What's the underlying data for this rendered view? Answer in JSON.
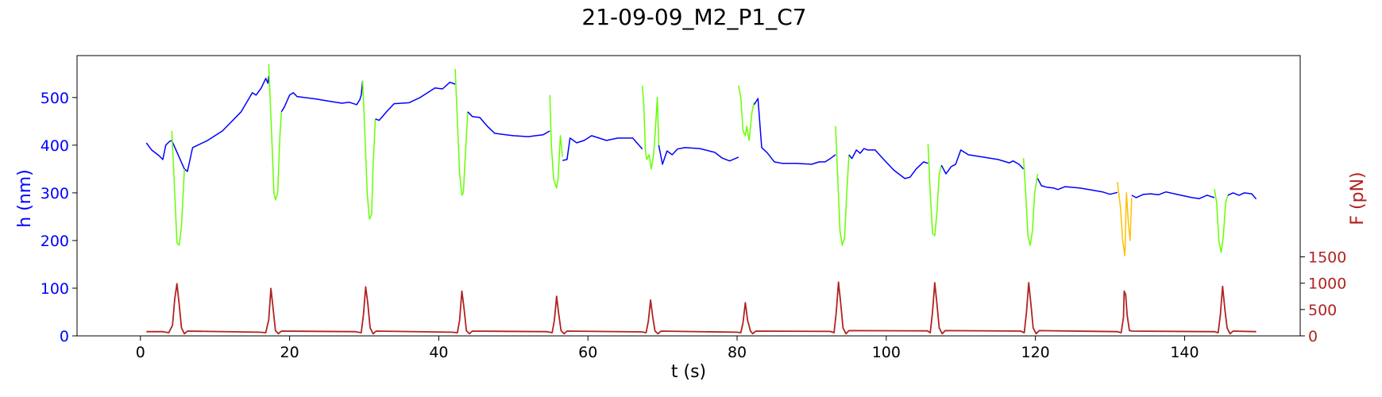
{
  "chart_data": {
    "type": "line",
    "title": "21-09-09_M2_P1_C7",
    "xlabel": "t (s)",
    "ylabel_left": "h (nm)",
    "ylabel_right": "F (pN)",
    "xlim": [
      -8.5,
      155.5
    ],
    "ylim_left": [
      0,
      588
    ],
    "ylim_right": [
      0,
      5320
    ],
    "x_ticks": [
      0,
      20,
      40,
      60,
      80,
      100,
      120,
      140
    ],
    "y_ticks_left": [
      0,
      100,
      200,
      300,
      400,
      500
    ],
    "y_ticks_right": [
      0,
      500,
      1000,
      1500
    ],
    "grid": false,
    "colors": {
      "height_baseline": "#0000ff",
      "height_pulse": "#66ff00",
      "height_pulse_alt": "#ffbf00",
      "force": "#b22222",
      "left_axis_text": "#0000ff",
      "right_axis_text": "#b22222"
    },
    "series": [
      {
        "axis": "left",
        "color": "#0000ff",
        "x": [
          0.8,
          1.5,
          2.5,
          3.0,
          3.4,
          3.9,
          4.2,
          5.9,
          6.3,
          7.0,
          9.0,
          11.0,
          13.5,
          15.0,
          15.5,
          16.2,
          16.8,
          17.1,
          17.2
        ],
        "y": [
          405,
          390,
          378,
          370,
          400,
          408,
          410,
          350,
          345,
          395,
          410,
          430,
          470,
          510,
          505,
          520,
          540,
          530,
          545
        ]
      },
      {
        "axis": "left",
        "color": "#66ff00",
        "x": [
          4.2,
          4.6,
          4.9,
          5.2,
          5.5,
          5.9
        ],
        "y": [
          430,
          300,
          195,
          190,
          230,
          350
        ]
      },
      {
        "axis": "left",
        "color": "#66ff00",
        "x": [
          17.2,
          17.6,
          17.9,
          18.1,
          18.4,
          18.7,
          18.9
        ],
        "y": [
          570,
          420,
          300,
          285,
          300,
          420,
          470
        ]
      },
      {
        "axis": "left",
        "color": "#0000ff",
        "x": [
          18.9,
          19.3,
          20.0,
          20.5,
          21.0,
          23.5,
          25.0,
          27.0,
          28.0,
          29.0,
          29.4,
          29.6,
          29.8
        ],
        "y": [
          470,
          480,
          505,
          510,
          502,
          497,
          493,
          488,
          490,
          485,
          495,
          505,
          535
        ]
      },
      {
        "axis": "left",
        "color": "#66ff00",
        "x": [
          29.8,
          30.1,
          30.4,
          30.7,
          31.0,
          31.2,
          31.5
        ],
        "y": [
          535,
          420,
          300,
          245,
          255,
          360,
          455
        ]
      },
      {
        "axis": "left",
        "color": "#0000ff",
        "x": [
          31.5,
          32.0,
          33.0,
          34.0,
          35.0,
          36.0,
          37.5,
          39.5,
          40.5,
          41.5,
          42.2
        ],
        "y": [
          455,
          452,
          470,
          487,
          488,
          489,
          500,
          520,
          518,
          532,
          528
        ]
      },
      {
        "axis": "left",
        "color": "#66ff00",
        "x": [
          42.2,
          42.5,
          42.8,
          43.1,
          43.3,
          43.6,
          43.9
        ],
        "y": [
          560,
          450,
          340,
          295,
          300,
          390,
          470
        ]
      },
      {
        "axis": "left",
        "color": "#0000ff",
        "x": [
          43.9,
          44.5,
          45.5,
          46.5,
          47.5,
          50.0,
          52.0,
          53.0,
          54.0,
          54.9
        ],
        "y": [
          470,
          460,
          458,
          440,
          425,
          420,
          418,
          420,
          422,
          430
        ]
      },
      {
        "axis": "left",
        "color": "#66ff00",
        "x": [
          54.9,
          55.1,
          55.4,
          55.6,
          55.8,
          56.0,
          56.3,
          56.6
        ],
        "y": [
          505,
          400,
          330,
          320,
          310,
          330,
          420,
          375
        ]
      },
      {
        "axis": "left",
        "color": "#0000ff",
        "x": [
          56.6,
          57.2,
          57.6,
          58.5,
          59.5,
          60.5,
          62.5,
          64.0,
          66.0,
          67.3
        ],
        "y": [
          368,
          370,
          415,
          405,
          410,
          420,
          410,
          415,
          415,
          392
        ]
      },
      {
        "axis": "left",
        "color": "#66ff00",
        "x": [
          67.3,
          67.5,
          67.7,
          67.9,
          68.2,
          68.5,
          68.8,
          69.0,
          69.3,
          69.5
        ],
        "y": [
          525,
          480,
          390,
          370,
          380,
          350,
          380,
          420,
          500,
          400
        ]
      },
      {
        "axis": "left",
        "color": "#0000ff",
        "x": [
          69.5,
          70.0,
          70.6,
          71.3,
          72.0,
          73.0,
          75.0,
          77.0,
          78.0,
          79.0,
          80.2
        ],
        "y": [
          400,
          360,
          388,
          380,
          392,
          395,
          393,
          385,
          373,
          367,
          375
        ]
      },
      {
        "axis": "left",
        "color": "#66ff00",
        "x": [
          80.2,
          80.5,
          80.8,
          81.1,
          81.3,
          81.6,
          82.0,
          82.3
        ],
        "y": [
          525,
          500,
          430,
          420,
          440,
          410,
          470,
          490
        ]
      },
      {
        "axis": "left",
        "color": "#0000ff",
        "x": [
          82.3,
          82.8,
          83.3,
          84.0,
          85.0,
          86.0,
          88.0,
          90.0,
          91.0,
          91.8,
          92.5,
          93.2
        ],
        "y": [
          485,
          498,
          395,
          385,
          365,
          362,
          362,
          360,
          365,
          365,
          372,
          380
        ]
      },
      {
        "axis": "left",
        "color": "#66ff00",
        "x": [
          93.2,
          93.5,
          93.8,
          94.1,
          94.4,
          94.7,
          95.0
        ],
        "y": [
          440,
          330,
          220,
          190,
          205,
          300,
          380
        ]
      },
      {
        "axis": "left",
        "color": "#0000ff",
        "x": [
          95.0,
          95.4,
          96.0,
          96.5,
          97.0,
          97.5,
          98.5,
          99.5,
          101.0,
          102.5,
          103.2,
          104.0,
          105.0,
          105.6
        ],
        "y": [
          380,
          372,
          390,
          383,
          393,
          390,
          390,
          373,
          348,
          330,
          333,
          350,
          365,
          362
        ]
      },
      {
        "axis": "left",
        "color": "#66ff00",
        "x": [
          105.6,
          105.9,
          106.2,
          106.5,
          106.8,
          107.1,
          107.4
        ],
        "y": [
          403,
          300,
          215,
          210,
          260,
          340,
          358
        ]
      },
      {
        "axis": "left",
        "color": "#0000ff",
        "x": [
          107.4,
          108.0,
          108.7,
          109.3,
          110.0,
          111.0,
          113.0,
          115.0,
          116.5,
          117.0,
          117.8,
          118.4
        ],
        "y": [
          358,
          340,
          355,
          360,
          390,
          380,
          375,
          370,
          363,
          367,
          360,
          350
        ]
      },
      {
        "axis": "left",
        "color": "#66ff00",
        "x": [
          118.4,
          118.7,
          119.0,
          119.3,
          119.6,
          119.9,
          120.3
        ],
        "y": [
          373,
          300,
          210,
          190,
          220,
          300,
          340
        ]
      },
      {
        "axis": "left",
        "color": "#0000ff",
        "x": [
          120.3,
          120.8,
          121.5,
          122.5,
          123.0,
          124.0,
          126.0,
          127.5,
          129.0,
          130.0,
          131.0
        ],
        "y": [
          330,
          315,
          312,
          310,
          307,
          313,
          310,
          306,
          302,
          297,
          301
        ]
      },
      {
        "axis": "left",
        "color": "#ffbf00",
        "x": [
          131.0,
          131.4,
          131.7,
          132.0,
          132.2,
          132.5,
          132.7,
          132.9
        ],
        "y": [
          323,
          270,
          200,
          168,
          300,
          230,
          200,
          290
        ]
      },
      {
        "axis": "left",
        "color": "#0000ff",
        "x": [
          132.9,
          133.5,
          134.5,
          135.5,
          136.5,
          137.5,
          139.5,
          141.0,
          142.0,
          143.0,
          144.0
        ],
        "y": [
          295,
          290,
          297,
          298,
          296,
          302,
          295,
          290,
          288,
          295,
          290
        ]
      },
      {
        "axis": "left",
        "color": "#66ff00",
        "x": [
          144.0,
          144.3,
          144.6,
          144.9,
          145.2,
          145.5,
          145.8
        ],
        "y": [
          308,
          280,
          200,
          175,
          210,
          280,
          295
        ]
      },
      {
        "axis": "left",
        "color": "#0000ff",
        "x": [
          145.8,
          146.5,
          147.3,
          148.0,
          149.0,
          149.6
        ],
        "y": [
          295,
          300,
          295,
          300,
          298,
          287
        ]
      },
      {
        "axis": "right",
        "color": "#b22222",
        "x": [
          0.8,
          3.0,
          3.8,
          4.3,
          4.6,
          4.9,
          5.2,
          5.5,
          5.9,
          6.3,
          16.0,
          16.8,
          17.2,
          17.5,
          17.8,
          18.1,
          18.5,
          18.9,
          28.8,
          29.6,
          29.9,
          30.2,
          30.5,
          30.8,
          31.2,
          31.6,
          41.8,
          42.5,
          42.8,
          43.1,
          43.4,
          43.7,
          44.1,
          44.5,
          54.5,
          55.2,
          55.5,
          55.8,
          56.1,
          56.4,
          56.8,
          57.2,
          67.2,
          67.8,
          68.1,
          68.4,
          68.7,
          69.0,
          69.4,
          69.8,
          80.0,
          80.5,
          80.8,
          81.1,
          81.4,
          81.8,
          82.1,
          82.5,
          92.5,
          93.0,
          93.3,
          93.6,
          93.9,
          94.2,
          94.6,
          95.0,
          105.5,
          105.9,
          106.2,
          106.5,
          106.8,
          107.1,
          107.5,
          107.9,
          118.0,
          118.5,
          118.8,
          119.1,
          119.4,
          119.7,
          120.1,
          120.5,
          131.0,
          131.5,
          131.8,
          131.9,
          132.1,
          132.3,
          132.6,
          133.0,
          144.0,
          144.5,
          144.8,
          145.1,
          145.4,
          145.7,
          146.1,
          146.5,
          149.6
        ],
        "y": [
          80,
          80,
          60,
          200,
          700,
          990,
          600,
          150,
          40,
          90,
          70,
          60,
          300,
          900,
          500,
          100,
          40,
          90,
          80,
          60,
          400,
          930,
          600,
          150,
          40,
          90,
          70,
          60,
          300,
          850,
          500,
          100,
          40,
          90,
          80,
          60,
          300,
          750,
          400,
          100,
          40,
          90,
          75,
          60,
          280,
          680,
          350,
          90,
          40,
          90,
          70,
          60,
          250,
          630,
          300,
          90,
          40,
          90,
          85,
          60,
          450,
          1020,
          600,
          150,
          40,
          100,
          95,
          60,
          450,
          1010,
          600,
          150,
          40,
          100,
          90,
          60,
          450,
          1010,
          600,
          150,
          40,
          100,
          80,
          60,
          350,
          850,
          780,
          400,
          100,
          90,
          80,
          60,
          400,
          940,
          500,
          150,
          40,
          90,
          80
        ]
      }
    ]
  }
}
